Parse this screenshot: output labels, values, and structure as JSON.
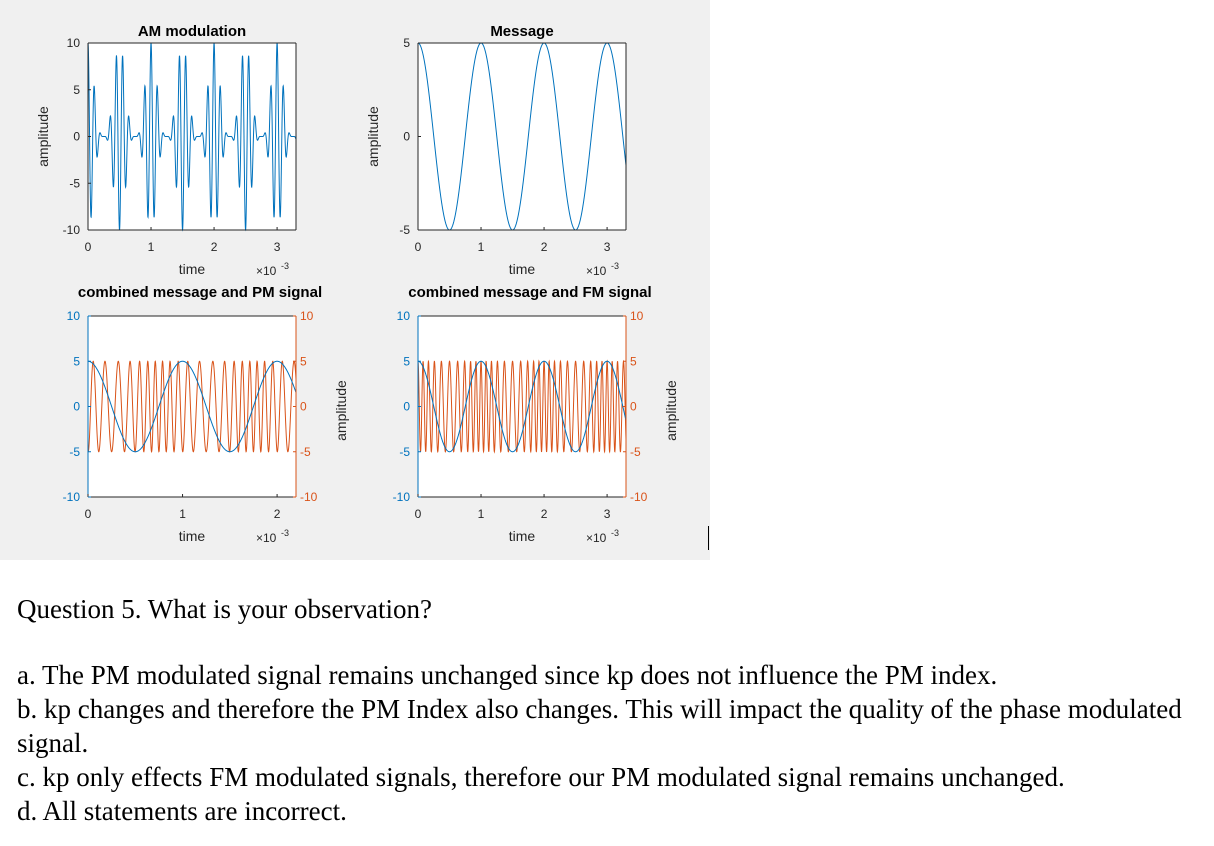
{
  "figure": {
    "background": "#f0f0f0",
    "blue": "#0072bd",
    "orange": "#d95319",
    "panels": [
      {
        "id": "am",
        "chart_data": {
          "type": "line",
          "title": "AM modulation",
          "xlabel": "time",
          "ylabel": "amplitude",
          "x_multiplier": "×10",
          "x_exponent": "-3",
          "xlim": [
            0,
            3.3
          ],
          "ylim": [
            -10,
            10
          ],
          "xticks": [
            0,
            1,
            2,
            3
          ],
          "yticks": [
            -10,
            -5,
            0,
            5,
            10
          ],
          "series": [
            {
              "kind": "am",
              "message_freq_khz": 1,
              "carrier_freq_khz": 10,
              "amplitude_peak": 10,
              "color": "#0072bd"
            }
          ]
        }
      },
      {
        "id": "msg",
        "chart_data": {
          "type": "line",
          "title": "Message",
          "xlabel": "time",
          "ylabel": "amplitude",
          "x_multiplier": "×10",
          "x_exponent": "-3",
          "xlim": [
            0,
            3.3
          ],
          "ylim": [
            -5,
            5
          ],
          "xticks": [
            0,
            1,
            2,
            3
          ],
          "yticks": [
            -5,
            0,
            5
          ],
          "series": [
            {
              "kind": "cos",
              "freq_khz": 1,
              "amplitude": 5,
              "color": "#0072bd"
            }
          ]
        }
      },
      {
        "id": "pm",
        "chart_data": {
          "type": "line",
          "title": "combined message and PM signal",
          "xlabel": "time",
          "ylabel_right": "amplitude",
          "x_multiplier": "×10",
          "x_exponent": "-3",
          "xlim": [
            0,
            2.2
          ],
          "ylim_left": [
            -10,
            10
          ],
          "ylim_right": [
            -10,
            10
          ],
          "xticks": [
            0,
            1,
            2
          ],
          "yticks_left": [
            -10,
            -5,
            0,
            5,
            10
          ],
          "yticks_right": [
            -10,
            -5,
            0,
            5,
            10
          ],
          "series": [
            {
              "kind": "pm",
              "carrier_freq_khz": 10,
              "message_freq_khz": 1,
              "amplitude": 5,
              "axis": "right",
              "color": "#d95319"
            },
            {
              "kind": "cos",
              "freq_khz": 1,
              "amplitude": 5,
              "axis": "left",
              "color": "#0072bd"
            }
          ]
        }
      },
      {
        "id": "fm",
        "chart_data": {
          "type": "line",
          "title": "combined message and FM signal",
          "xlabel": "time",
          "ylabel_right": "amplitude",
          "x_multiplier": "×10",
          "x_exponent": "-3",
          "xlim": [
            0,
            3.3
          ],
          "ylim_left": [
            -10,
            10
          ],
          "ylim_right": [
            -10,
            10
          ],
          "xticks": [
            0,
            1,
            2,
            3
          ],
          "yticks_left": [
            -10,
            -5,
            0,
            5,
            10
          ],
          "yticks_right": [
            -10,
            -5,
            0,
            5,
            10
          ],
          "series": [
            {
              "kind": "fm",
              "carrier_freq_khz": 10,
              "message_freq_khz": 1,
              "amplitude": 5,
              "axis": "right",
              "color": "#d95319"
            },
            {
              "kind": "cos",
              "freq_khz": 1,
              "amplitude": 5,
              "axis": "left",
              "color": "#0072bd"
            }
          ]
        }
      }
    ]
  },
  "question": {
    "title": "Question 5. What is your observation?",
    "options": [
      "a. The PM modulated signal remains unchanged since kp does not influence the PM index.",
      "b. kp changes and therefore the PM Index also changes. This will impact the quality of the phase modulated signal.",
      "c. kp only effects FM modulated signals, therefore our PM modulated signal remains unchanged.",
      "d. All statements are incorrect."
    ]
  }
}
